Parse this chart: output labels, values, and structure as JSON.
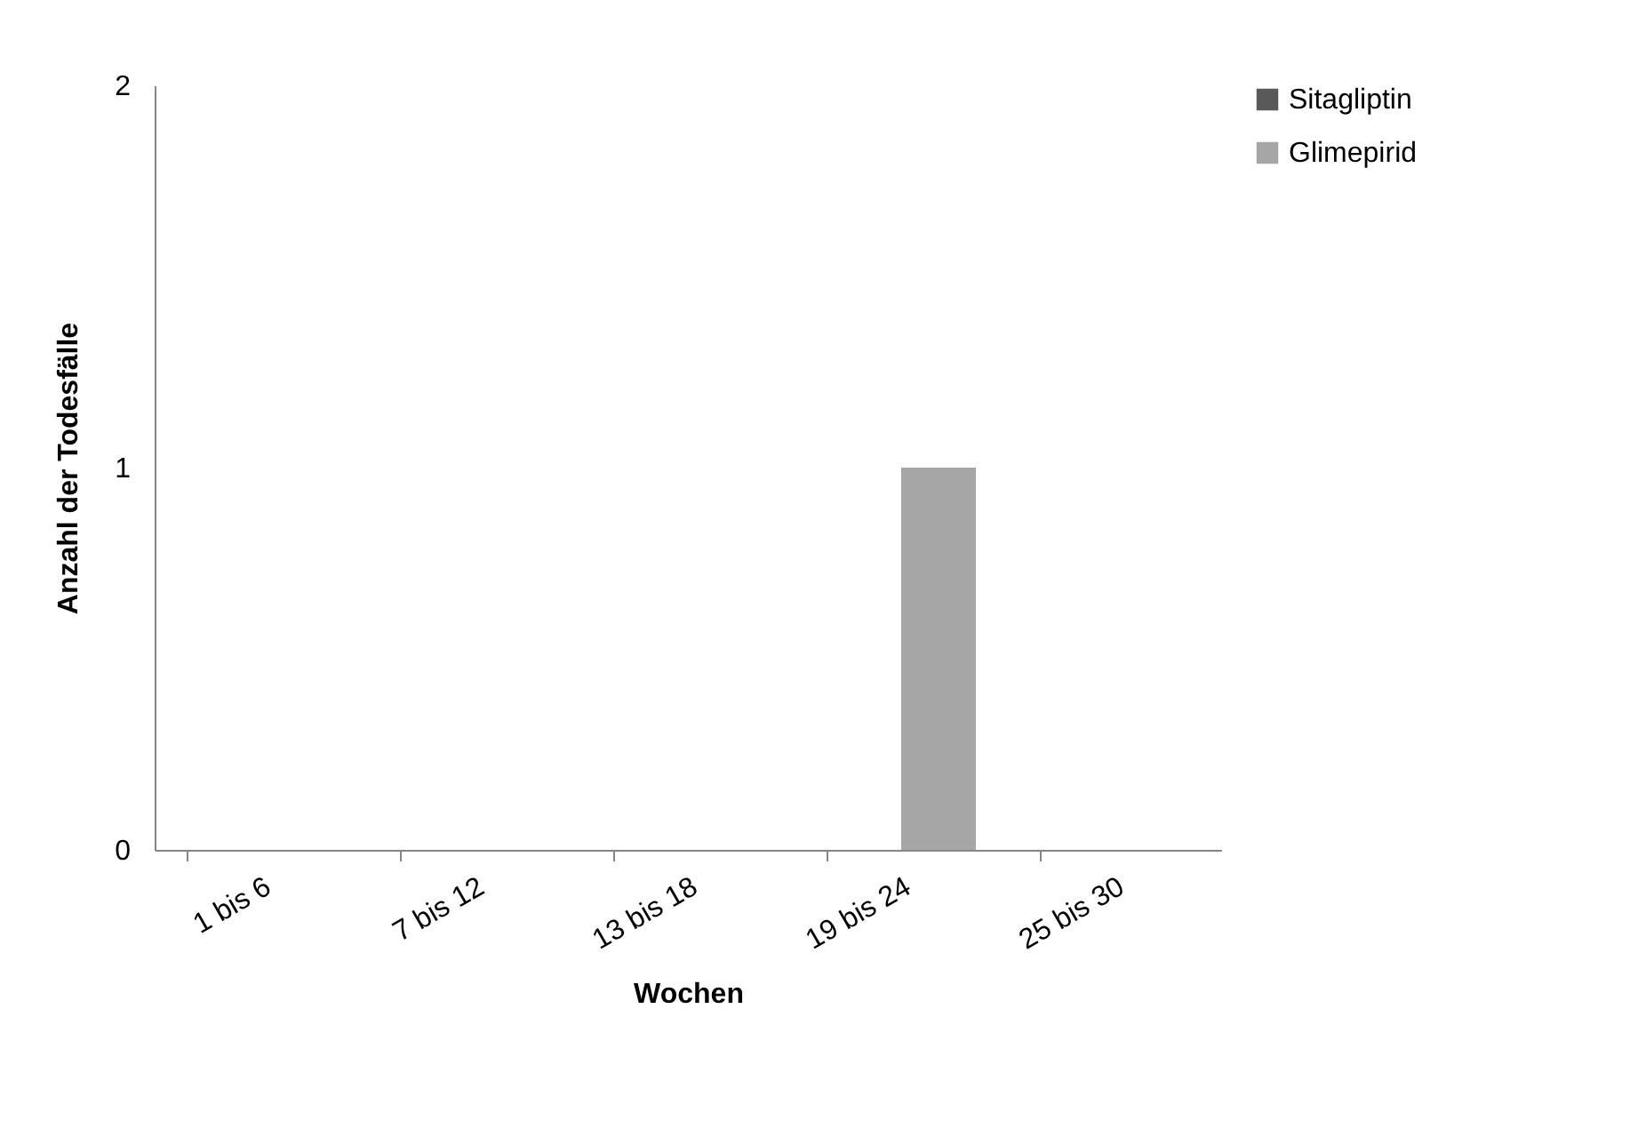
{
  "chart_data": {
    "type": "bar",
    "xlabel": "Wochen",
    "ylabel": "Anzahl der Todesfälle",
    "categories": [
      "1 bis 6",
      "7 bis 12",
      "13 bis 18",
      "19 bis 24",
      "25 bis 30"
    ],
    "series": [
      {
        "name": "Sitagliptin",
        "color": "#595959",
        "values": [
          0,
          0,
          0,
          0,
          0
        ]
      },
      {
        "name": "Glimepirid",
        "color": "#a6a6a6",
        "values": [
          0,
          0,
          0,
          1,
          0
        ]
      }
    ],
    "ylim": [
      0,
      2
    ],
    "yticks": [
      0,
      1,
      2
    ],
    "grid": false,
    "legend": "right"
  }
}
